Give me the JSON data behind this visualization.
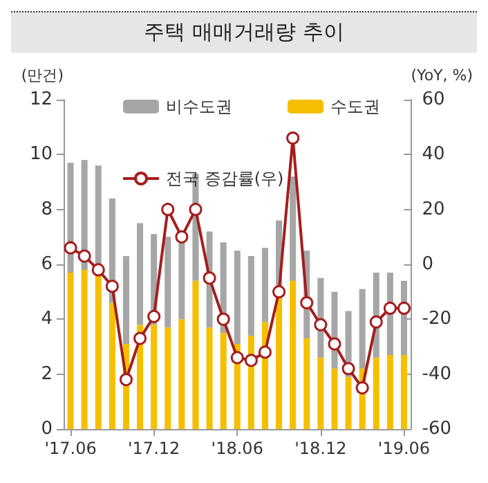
{
  "chart_data": {
    "type": "bar",
    "title": "주택 매매거래량 추이",
    "ylabel": "(만건)",
    "y2label": "(YoY, %)",
    "categories": [
      "'17.06",
      null,
      null,
      null,
      null,
      null,
      "'17.12",
      null,
      null,
      null,
      null,
      null,
      "'18.06",
      null,
      null,
      null,
      null,
      null,
      "'18.12",
      null,
      null,
      null,
      null,
      null,
      "'19.06"
    ],
    "series": [
      {
        "name": "수도권",
        "color": "#f5bf00",
        "values": [
          5.7,
          5.8,
          5.6,
          4.6,
          3.1,
          3.8,
          3.8,
          3.7,
          4.0,
          5.4,
          3.7,
          3.5,
          3.1,
          3.4,
          3.9,
          4.9,
          5.4,
          3.3,
          2.6,
          2.2,
          1.9,
          2.2,
          2.6,
          2.7,
          2.7
        ]
      },
      {
        "name": "비수도권",
        "color": "#a6a6a6",
        "values": [
          4.0,
          4.0,
          4.0,
          3.8,
          3.2,
          3.7,
          3.3,
          3.3,
          2.9,
          3.9,
          3.5,
          3.3,
          3.4,
          2.9,
          2.7,
          2.7,
          3.8,
          3.2,
          2.9,
          2.8,
          2.4,
          2.9,
          3.1,
          3.0,
          2.7
        ]
      },
      {
        "name": "전국 증감률(우)",
        "type": "line",
        "axis": "y2",
        "color": "#a51d1d",
        "marker": "circle",
        "values": [
          6,
          3,
          -2,
          -8,
          -42,
          -27,
          -19,
          20,
          10,
          20,
          -5,
          -20,
          -34,
          -35,
          -32,
          -10,
          46,
          -14,
          -22,
          -29,
          -38,
          -45,
          -21,
          -16,
          -16
        ]
      }
    ],
    "stacked": true,
    "ylim": [
      0,
      12
    ],
    "yticks": [
      0,
      2,
      4,
      6,
      8,
      10,
      12
    ],
    "y2lim": [
      -60,
      60
    ],
    "y2ticks": [
      -60,
      -40,
      -20,
      0,
      20,
      40,
      60
    ],
    "grid": false,
    "legend": "top"
  }
}
